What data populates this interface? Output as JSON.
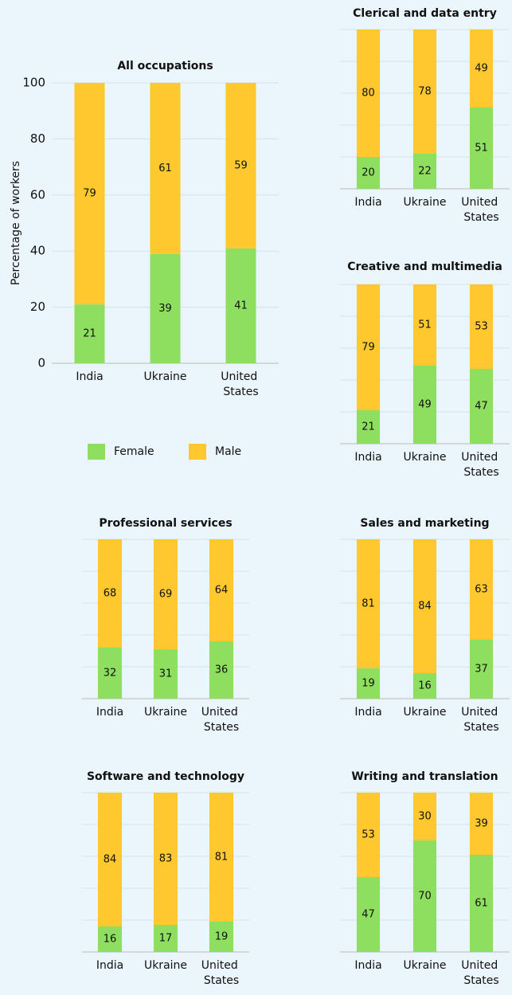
{
  "chart_data": [
    {
      "type": "stacked_bar",
      "title": "All occupations",
      "ylabel": "Percentage of workers",
      "categories": [
        "India",
        "Ukraine",
        "United States"
      ],
      "series": [
        {
          "name": "Female",
          "color": "#8ede5f",
          "values": [
            21,
            39,
            41
          ]
        },
        {
          "name": "Male",
          "color": "#ffc82e",
          "values": [
            79,
            61,
            59
          ]
        }
      ],
      "ylim": [
        0,
        100
      ],
      "yticks": [
        0,
        20,
        40,
        60,
        80,
        100
      ],
      "grid": true,
      "legend": "bottom"
    },
    {
      "type": "stacked_bar",
      "title": "Clerical and data entry",
      "categories": [
        "India",
        "Ukraine",
        "United States"
      ],
      "series": [
        {
          "color": "#8ede5f",
          "values": [
            20,
            22,
            51
          ]
        },
        {
          "color": "#ffc82e",
          "values": [
            80,
            78,
            49
          ]
        }
      ],
      "ylim": [
        0,
        100
      ]
    },
    {
      "type": "stacked_bar",
      "title": "Creative and multimedia",
      "categories": [
        "India",
        "Ukraine",
        "United States"
      ],
      "series": [
        {
          "color": "#8ede5f",
          "values": [
            21,
            49,
            47
          ]
        },
        {
          "color": "#ffc82e",
          "values": [
            79,
            51,
            53
          ]
        }
      ],
      "ylim": [
        0,
        100
      ]
    },
    {
      "type": "stacked_bar",
      "title": "Professional services",
      "categories": [
        "India",
        "Ukraine",
        "United States"
      ],
      "series": [
        {
          "color": "#8ede5f",
          "values": [
            32,
            31,
            36
          ]
        },
        {
          "color": "#ffc82e",
          "values": [
            68,
            69,
            64
          ]
        }
      ],
      "ylim": [
        0,
        100
      ]
    },
    {
      "type": "stacked_bar",
      "title": "Sales and marketing",
      "categories": [
        "India",
        "Ukraine",
        "United States"
      ],
      "series": [
        {
          "color": "#8ede5f",
          "values": [
            19,
            16,
            37
          ]
        },
        {
          "color": "#ffc82e",
          "values": [
            81,
            84,
            63
          ]
        }
      ],
      "ylim": [
        0,
        100
      ]
    },
    {
      "type": "stacked_bar",
      "title": "Software and technology",
      "categories": [
        "India",
        "Ukraine",
        "United States"
      ],
      "series": [
        {
          "color": "#8ede5f",
          "values": [
            16,
            17,
            19
          ]
        },
        {
          "color": "#ffc82e",
          "values": [
            84,
            83,
            81
          ]
        }
      ],
      "ylim": [
        0,
        100
      ]
    },
    {
      "type": "stacked_bar",
      "title": "Writing and translation",
      "categories": [
        "India",
        "Ukraine",
        "United States"
      ],
      "series": [
        {
          "color": "#8ede5f",
          "values": [
            47,
            70,
            61
          ]
        },
        {
          "color": "#ffc82e",
          "values": [
            53,
            30,
            39
          ]
        }
      ],
      "ylim": [
        0,
        100
      ]
    }
  ]
}
